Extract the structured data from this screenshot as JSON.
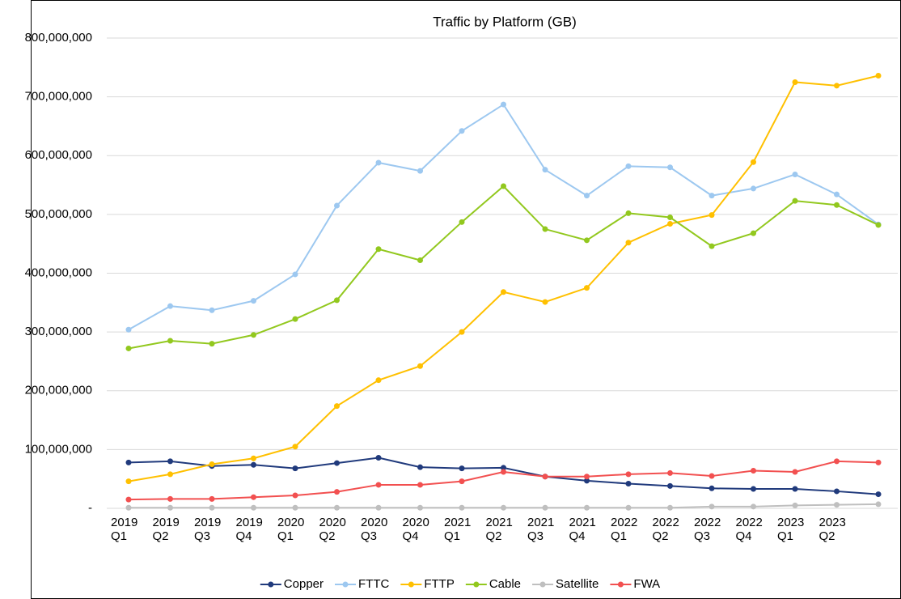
{
  "chart_data": {
    "type": "line",
    "title": "Traffic by Platform (GB)",
    "categories": [
      "2019 Q1",
      "2019 Q2",
      "2019 Q3",
      "2019 Q4",
      "2020 Q1",
      "2020 Q2",
      "2020 Q3",
      "2020 Q4",
      "2021 Q1",
      "2021 Q2",
      "2021 Q3",
      "2021 Q4",
      "2022 Q1",
      "2022 Q2",
      "2022 Q3",
      "2022 Q4",
      "2023 Q1",
      "2023 Q2",
      null
    ],
    "series": [
      {
        "name": "Copper",
        "color": "#203a7c",
        "values": [
          78000000,
          80000000,
          72000000,
          74000000,
          68000000,
          77000000,
          86000000,
          70000000,
          68000000,
          69000000,
          54000000,
          47000000,
          42000000,
          38000000,
          34000000,
          33000000,
          33000000,
          29000000,
          24000000
        ]
      },
      {
        "name": "FTTC",
        "color": "#9dc8f0",
        "values": [
          304000000,
          344000000,
          337000000,
          353000000,
          398000000,
          515000000,
          588000000,
          574000000,
          642000000,
          687000000,
          576000000,
          532000000,
          582000000,
          580000000,
          532000000,
          544000000,
          568000000,
          534000000,
          483000000
        ]
      },
      {
        "name": "FTTP",
        "color": "#ffc000",
        "values": [
          46000000,
          58000000,
          75000000,
          85000000,
          105000000,
          174000000,
          218000000,
          242000000,
          300000000,
          368000000,
          351000000,
          375000000,
          452000000,
          484000000,
          499000000,
          589000000,
          725000000,
          719000000,
          736000000
        ]
      },
      {
        "name": "Cable",
        "color": "#92c81e",
        "values": [
          272000000,
          285000000,
          280000000,
          295000000,
          322000000,
          354000000,
          441000000,
          422000000,
          487000000,
          548000000,
          475000000,
          456000000,
          502000000,
          495000000,
          446000000,
          468000000,
          523000000,
          516000000,
          482000000
        ]
      },
      {
        "name": "Satellite",
        "color": "#bfbfbf",
        "values": [
          1000000,
          1000000,
          1000000,
          1000000,
          1000000,
          1000000,
          1000000,
          1000000,
          1000000,
          1000000,
          1000000,
          1000000,
          1000000,
          1000000,
          3000000,
          3000000,
          5000000,
          6000000,
          7000000
        ]
      },
      {
        "name": "FWA",
        "color": "#f25050",
        "values": [
          15000000,
          16000000,
          16000000,
          19000000,
          22000000,
          28000000,
          40000000,
          40000000,
          46000000,
          62000000,
          54000000,
          54000000,
          58000000,
          60000000,
          55000000,
          64000000,
          62000000,
          80000000,
          78000000
        ]
      }
    ],
    "ylim": [
      0,
      800000000
    ],
    "yticks": [
      {
        "value": 0,
        "label": "-"
      },
      {
        "value": 100000000,
        "label": "100,000,000"
      },
      {
        "value": 200000000,
        "label": "200,000,000"
      },
      {
        "value": 300000000,
        "label": "300,000,000"
      },
      {
        "value": 400000000,
        "label": "400,000,000"
      },
      {
        "value": 500000000,
        "label": "500,000,000"
      },
      {
        "value": 600000000,
        "label": "600,000,000"
      },
      {
        "value": 700000000,
        "label": "700,000,000"
      },
      {
        "value": 800000000,
        "label": "800,000,000"
      }
    ],
    "grid": true,
    "legend": "bottom"
  }
}
